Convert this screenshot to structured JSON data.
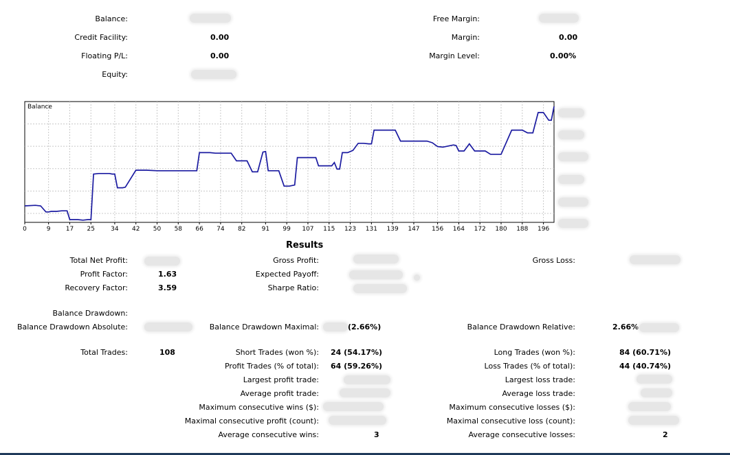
{
  "account": {
    "balance_label": "Balance:",
    "credit_label": "Credit Facility:",
    "credit_value": "0.00",
    "floating_label": "Floating P/L:",
    "floating_value": "0.00",
    "equity_label": "Equity:",
    "free_margin_label": "Free Margin:",
    "margin_label": "Margin:",
    "margin_value": "0.00",
    "margin_level_label": "Margin Level:",
    "margin_level_value": "0.00%"
  },
  "chart_data": {
    "type": "line",
    "title": "Balance",
    "x_ticks": [
      "0",
      "9",
      "17",
      "25",
      "34",
      "42",
      "50",
      "58",
      "66",
      "74",
      "82",
      "91",
      "99",
      "107",
      "115",
      "123",
      "131",
      "139",
      "147",
      "156",
      "164",
      "172",
      "180",
      "188",
      "196"
    ],
    "xlim": [
      0,
      200
    ],
    "grid": true,
    "line_color": "#1a1aa0",
    "x": [
      0,
      4,
      6,
      8,
      9,
      10,
      12,
      14,
      16,
      17,
      18,
      20,
      22,
      24,
      25,
      26,
      28,
      30,
      32,
      33,
      34,
      35,
      36,
      37,
      38,
      42,
      46,
      50,
      54,
      58,
      62,
      65,
      66,
      68,
      70,
      72,
      74,
      76,
      78,
      80,
      82,
      84,
      86,
      88,
      90,
      91,
      92,
      94,
      96,
      98,
      100,
      102,
      103,
      104,
      106,
      108,
      110,
      111,
      112,
      114,
      116,
      117,
      118,
      119,
      120,
      122,
      124,
      126,
      128,
      130,
      131,
      132,
      134,
      136,
      138,
      140,
      142,
      144,
      146,
      148,
      150,
      152,
      154,
      156,
      158,
      160,
      162,
      163,
      164,
      166,
      168,
      170,
      172,
      174,
      176,
      178,
      180,
      184,
      186,
      188,
      190,
      192,
      194,
      196,
      198,
      199,
      200
    ],
    "y": [
      30,
      31,
      30,
      19,
      19,
      20,
      20,
      21,
      21,
      5,
      5,
      5,
      4,
      5,
      5,
      88,
      89,
      89,
      89,
      88,
      88,
      63,
      63,
      63,
      64,
      95,
      95,
      94,
      94,
      94,
      94,
      94,
      127,
      127,
      127,
      126,
      126,
      126,
      126,
      112,
      112,
      112,
      92,
      92,
      128,
      129,
      94,
      94,
      94,
      66,
      66,
      68,
      118,
      118,
      118,
      118,
      118,
      103,
      103,
      103,
      103,
      109,
      97,
      97,
      127,
      127,
      131,
      144,
      144,
      143,
      143,
      168,
      168,
      168,
      168,
      168,
      148,
      148,
      148,
      148,
      148,
      148,
      145,
      138,
      137,
      139,
      141,
      140,
      130,
      130,
      143,
      130,
      130,
      130,
      124,
      124,
      124,
      168,
      168,
      168,
      163,
      163,
      200,
      200,
      186,
      186,
      211
    ],
    "ylim": [
      0,
      220
    ]
  },
  "results": {
    "title": "Results",
    "total_net_profit_label": "Total Net Profit:",
    "gross_profit_label": "Gross Profit:",
    "gross_loss_label": "Gross Loss:",
    "profit_factor_label": "Profit Factor:",
    "profit_factor_value": "1.63",
    "expected_payoff_label": "Expected Payoff:",
    "recovery_factor_label": "Recovery Factor:",
    "recovery_factor_value": "3.59",
    "sharpe_ratio_label": "Sharpe Ratio:",
    "balance_drawdown_label": "Balance Drawdown:",
    "balance_drawdown_absolute_label": "Balance Drawdown Absolute:",
    "balance_drawdown_maximal_label": "Balance Drawdown Maximal:",
    "balance_drawdown_maximal_value": "(2.66%)",
    "balance_drawdown_relative_label": "Balance Drawdown Relative:",
    "balance_drawdown_relative_value": "2.66%",
    "total_trades_label": "Total Trades:",
    "total_trades_value": "108",
    "short_trades_label": "Short Trades (won %):",
    "short_trades_value": "24 (54.17%)",
    "long_trades_label": "Long Trades (won %):",
    "long_trades_value": "84 (60.71%)",
    "profit_trades_label": "Profit Trades (% of total):",
    "profit_trades_value": "64 (59.26%)",
    "loss_trades_label": "Loss Trades (% of total):",
    "loss_trades_value": "44 (40.74%)",
    "largest_profit_label": "Largest profit trade:",
    "largest_loss_label": "Largest loss trade:",
    "average_profit_label": "Average profit trade:",
    "average_loss_label": "Average loss trade:",
    "max_consec_wins_label": "Maximum consecutive wins ($):",
    "max_consec_losses_label": "Maximum consecutive losses ($):",
    "maximal_consec_profit_label": "Maximal consecutive profit (count):",
    "maximal_consec_loss_label": "Maximal consecutive loss (count):",
    "avg_consec_wins_label": "Average consecutive wins:",
    "avg_consec_wins_value": "3",
    "avg_consec_losses_label": "Average consecutive losses:",
    "avg_consec_losses_value": "2"
  }
}
